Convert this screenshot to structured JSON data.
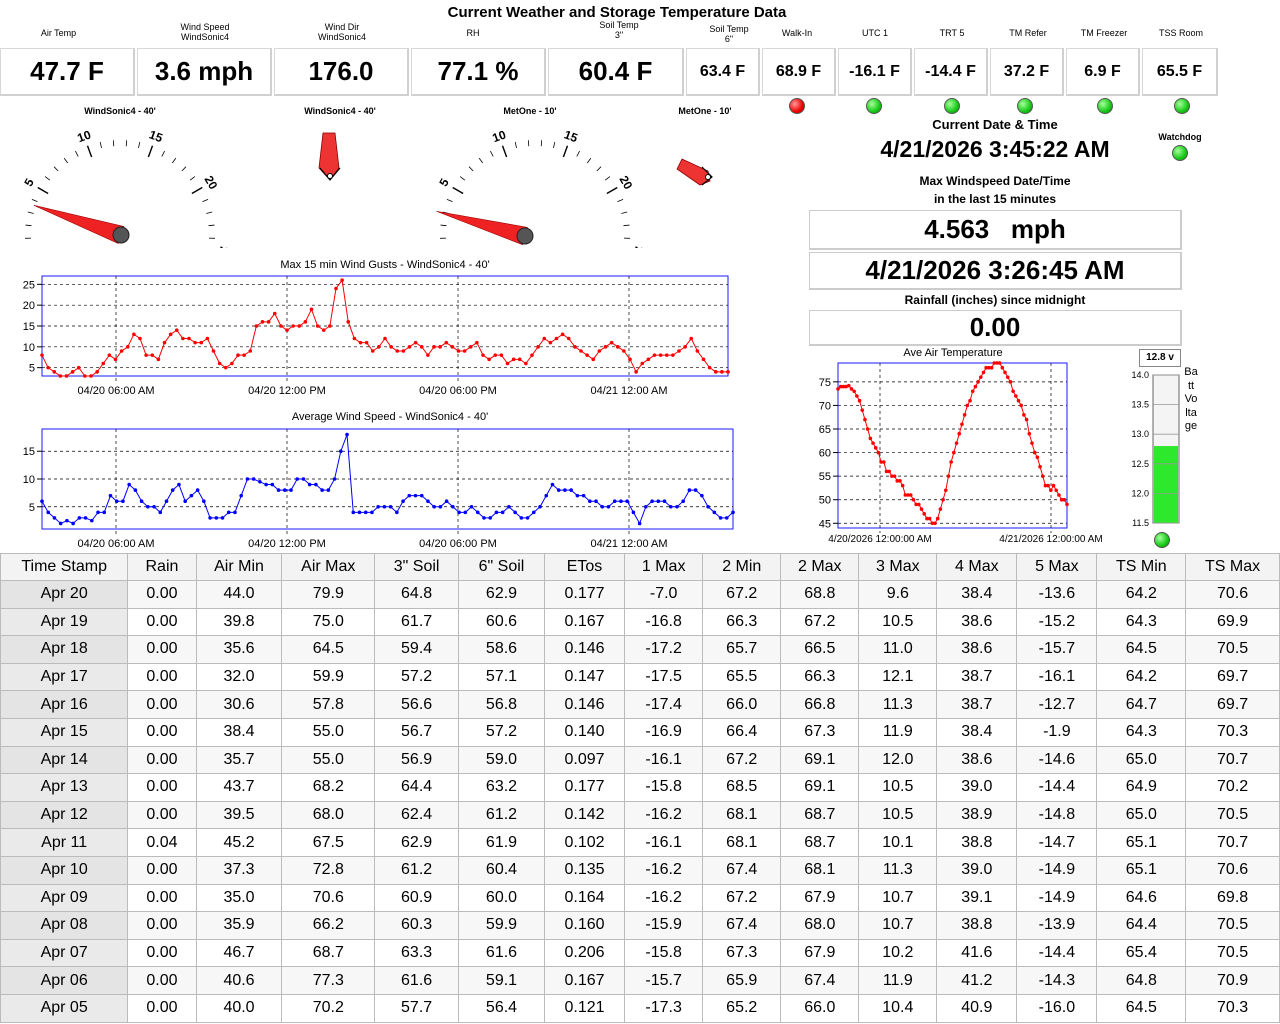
{
  "page_title": "Current Weather and Storage Temperature Data",
  "headers": {
    "air_temp": "Air Temp",
    "wind_speed": "Wind Speed\nWindSonic4",
    "wind_dir": "Wind Dir\nWindSonic4",
    "rh": "RH",
    "soil3": "Soil Temp\n3\"",
    "soil6": "Soil Temp\n6\"",
    "walkin": "Walk-In",
    "utc1": "UTC 1",
    "trt5": "TRT 5",
    "tm_refer": "TM Refer",
    "tm_freezer": "TM Freezer",
    "tss_room": "TSS Room"
  },
  "values": {
    "air_temp": "47.7  F",
    "wind_speed": "3.6  mph",
    "wind_dir": "176.0",
    "rh": "77.1  %",
    "soil3": "60.4  F",
    "soil6": "63.4  F",
    "walkin": "68.9  F",
    "utc1": "-16.1  F",
    "trt5": "-14.4  F",
    "tm_refer": "37.2  F",
    "tm_freezer": "6.9  F",
    "tss_room": "65.5  F"
  },
  "status_leds": {
    "walkin": "#e00000",
    "utc1": "#17c917",
    "trt5": "#17c917",
    "tm_refer": "#17c917",
    "tm_freezer": "#17c917",
    "tss_room": "#17c917",
    "watchdog": "#17c917",
    "batt": "#17c917"
  },
  "gauges": {
    "g1_label": "WindSonic4 - 40'",
    "g1_value_mph": 3.6,
    "vane1_label": "WindSonic4 - 40'",
    "g2_label": "MetOne - 10'",
    "g2_value_mph": 3.2,
    "vane2_label": "MetOne - 10'",
    "scale_ticks": [
      "0",
      "5",
      "10",
      "15",
      "20",
      "25"
    ]
  },
  "datetime": {
    "label": "Current Date & Time",
    "value": "4/21/2026 3:45:22 AM",
    "watchdog_label": "Watchdog"
  },
  "max_wind": {
    "label_line1": "Max Windspeed Date/Time",
    "label_line2": "in the last 15 minutes",
    "speed": "4.563   mph",
    "time": "4/21/2026 3:26:45 AM"
  },
  "rainfall": {
    "label": "Rainfall (inches) since midnight",
    "value": "0.00"
  },
  "battery": {
    "value_label": "12.8 v",
    "title": "Batt Voltage",
    "level_v": 12.8,
    "ticks": [
      "14.0",
      "13.5",
      "13.0",
      "12.5",
      "12.0",
      "11.5"
    ]
  },
  "chart_data": [
    {
      "type": "line",
      "title": "Max 15 min Wind Gusts - WindSonic4 - 40'",
      "x_tick_labels": [
        "04/20 06:00 AM",
        "04/20 12:00 PM",
        "04/20 06:00 PM",
        "04/21 12:00 AM"
      ],
      "ylim": [
        3,
        27
      ],
      "y_ticks": [
        "5",
        "10",
        "15",
        "20",
        "25"
      ],
      "series": [
        {
          "color": "#ff0000",
          "values": [
            8,
            5,
            4,
            3,
            3,
            4,
            5,
            3,
            3,
            4,
            6,
            8,
            7,
            9,
            10,
            13,
            12,
            8,
            8,
            7,
            11,
            13,
            14,
            12,
            12,
            11,
            11,
            12,
            9,
            6,
            5,
            6,
            8,
            8,
            9,
            15,
            16,
            16,
            18,
            15,
            14,
            15,
            15,
            16,
            19,
            15,
            14,
            15,
            24,
            26,
            16,
            12,
            11,
            11,
            9,
            10,
            12,
            10,
            9,
            9,
            10,
            11,
            10,
            8,
            10,
            10,
            11,
            10,
            9,
            9,
            10,
            11,
            8,
            7,
            8,
            8,
            6,
            7,
            7,
            6,
            8,
            10,
            12,
            11,
            12,
            13,
            12,
            10,
            9,
            8,
            7,
            9,
            10,
            11,
            10,
            9,
            7,
            4,
            6,
            7,
            8,
            8,
            8,
            8,
            9,
            10,
            12,
            9,
            7,
            5,
            4,
            4,
            4
          ]
        }
      ]
    },
    {
      "type": "line",
      "title": "Average Wind Speed - WindSonic4 - 40'",
      "x_tick_labels": [
        "04/20 06:00 AM",
        "04/20 12:00 PM",
        "04/20 06:00 PM",
        "04/21 12:00 AM"
      ],
      "ylim": [
        1,
        19
      ],
      "y_ticks": [
        "5",
        "10",
        "15"
      ],
      "series": [
        {
          "color": "#0000ff",
          "values": [
            6,
            4,
            3,
            2,
            2.5,
            2,
            3,
            3,
            2.5,
            4,
            4,
            7,
            6,
            6,
            9,
            8,
            6,
            5,
            5,
            4,
            6,
            8,
            9,
            6,
            7,
            8,
            6,
            3,
            3,
            3,
            4,
            4,
            7,
            10,
            10,
            9.5,
            9,
            9,
            8,
            8,
            8,
            10,
            10,
            9,
            9,
            8,
            8,
            10,
            15,
            18,
            4,
            4,
            4,
            4,
            5,
            5,
            5,
            4,
            6,
            7,
            7,
            7,
            6,
            5,
            5,
            6,
            5,
            4,
            4,
            5,
            4,
            3,
            3,
            4,
            4,
            5,
            4,
            3,
            3,
            4,
            5,
            7,
            9,
            8,
            8,
            8,
            7,
            7,
            6,
            6,
            5,
            5,
            6,
            6,
            6,
            4,
            2,
            5,
            6,
            6,
            6,
            5,
            5,
            6,
            8,
            8,
            7,
            5,
            4,
            3,
            3,
            4
          ]
        }
      ]
    },
    {
      "type": "line",
      "title": "Ave Air Temperature",
      "x_tick_labels": [
        "4/20/2026 12:00:00 AM",
        "4/21/2026 12:00:00 AM"
      ],
      "ylim": [
        44,
        79
      ],
      "y_ticks": [
        "45",
        "50",
        "55",
        "60",
        "65",
        "70",
        "75"
      ],
      "series": [
        {
          "color": "#ff0000",
          "values": [
            73.5,
            74,
            74,
            74,
            74.2,
            73.5,
            73,
            72,
            71,
            69,
            67,
            65,
            63,
            62,
            61,
            60,
            58,
            58,
            56,
            56,
            55,
            55,
            54,
            54,
            53,
            51,
            51,
            51,
            50,
            49,
            49,
            48,
            47,
            46,
            46,
            45,
            45,
            46,
            48,
            50,
            52,
            55,
            58,
            60,
            62,
            64,
            66,
            68,
            70,
            71,
            73,
            74,
            75,
            76,
            77,
            78,
            78,
            78,
            79,
            79,
            79,
            78,
            77,
            76,
            75,
            73,
            72,
            71,
            70,
            68,
            67,
            64,
            62,
            60,
            59,
            57,
            55,
            53,
            53,
            52,
            53,
            52,
            51,
            50,
            50,
            49
          ]
        }
      ]
    }
  ],
  "table": {
    "columns": [
      "Time Stamp",
      "Rain",
      "Air Min",
      "Air Max",
      "3\" Soil",
      "6\" Soil",
      "ETos",
      "1 Max",
      "2 Min",
      "2 Max",
      "3 Max",
      "4 Max",
      "5 Max",
      "TS Min",
      "TS Max"
    ],
    "rows": [
      [
        "Apr 20",
        "0.00",
        "44.0",
        "79.9",
        "64.8",
        "62.9",
        "0.177",
        "-7.0",
        "67.2",
        "68.8",
        "9.6",
        "38.4",
        "-13.6",
        "64.2",
        "70.6"
      ],
      [
        "Apr 19",
        "0.00",
        "39.8",
        "75.0",
        "61.7",
        "60.6",
        "0.167",
        "-16.8",
        "66.3",
        "67.2",
        "10.5",
        "38.6",
        "-15.2",
        "64.3",
        "69.9"
      ],
      [
        "Apr 18",
        "0.00",
        "35.6",
        "64.5",
        "59.4",
        "58.6",
        "0.146",
        "-17.2",
        "65.7",
        "66.5",
        "11.0",
        "38.6",
        "-15.7",
        "64.5",
        "70.5"
      ],
      [
        "Apr 17",
        "0.00",
        "32.0",
        "59.9",
        "57.2",
        "57.1",
        "0.147",
        "-17.5",
        "65.5",
        "66.3",
        "12.1",
        "38.7",
        "-16.1",
        "64.2",
        "69.7"
      ],
      [
        "Apr 16",
        "0.00",
        "30.6",
        "57.8",
        "56.6",
        "56.8",
        "0.146",
        "-17.4",
        "66.0",
        "66.8",
        "11.3",
        "38.7",
        "-12.7",
        "64.7",
        "69.7"
      ],
      [
        "Apr 15",
        "0.00",
        "38.4",
        "55.0",
        "56.7",
        "57.2",
        "0.140",
        "-16.9",
        "66.4",
        "67.3",
        "11.9",
        "38.4",
        "-1.9",
        "64.3",
        "70.3"
      ],
      [
        "Apr 14",
        "0.00",
        "35.7",
        "55.0",
        "56.9",
        "59.0",
        "0.097",
        "-16.1",
        "67.2",
        "69.1",
        "12.0",
        "38.6",
        "-14.6",
        "65.0",
        "70.7"
      ],
      [
        "Apr 13",
        "0.00",
        "43.7",
        "68.2",
        "64.4",
        "63.2",
        "0.177",
        "-15.8",
        "68.5",
        "69.1",
        "10.5",
        "39.0",
        "-14.4",
        "64.9",
        "70.2"
      ],
      [
        "Apr 12",
        "0.00",
        "39.5",
        "68.0",
        "62.4",
        "61.2",
        "0.142",
        "-16.2",
        "68.1",
        "68.7",
        "10.5",
        "38.9",
        "-14.8",
        "65.0",
        "70.5"
      ],
      [
        "Apr 11",
        "0.04",
        "45.2",
        "67.5",
        "62.9",
        "61.9",
        "0.102",
        "-16.1",
        "68.1",
        "68.7",
        "10.1",
        "38.8",
        "-14.7",
        "65.1",
        "70.7"
      ],
      [
        "Apr 10",
        "0.00",
        "37.3",
        "72.8",
        "61.2",
        "60.4",
        "0.135",
        "-16.2",
        "67.4",
        "68.1",
        "11.3",
        "39.0",
        "-14.9",
        "65.1",
        "70.6"
      ],
      [
        "Apr 09",
        "0.00",
        "35.0",
        "70.6",
        "60.9",
        "60.0",
        "0.164",
        "-16.2",
        "67.2",
        "67.9",
        "10.7",
        "39.1",
        "-14.9",
        "64.6",
        "69.8"
      ],
      [
        "Apr 08",
        "0.00",
        "35.9",
        "66.2",
        "60.3",
        "59.9",
        "0.160",
        "-15.9",
        "67.4",
        "68.0",
        "10.7",
        "38.8",
        "-13.9",
        "64.4",
        "70.5"
      ],
      [
        "Apr 07",
        "0.00",
        "46.7",
        "68.7",
        "63.3",
        "61.6",
        "0.206",
        "-15.8",
        "67.3",
        "67.9",
        "10.2",
        "41.6",
        "-14.4",
        "65.4",
        "70.5"
      ],
      [
        "Apr 06",
        "0.00",
        "40.6",
        "77.3",
        "61.6",
        "59.1",
        "0.167",
        "-15.7",
        "65.9",
        "67.4",
        "11.9",
        "41.2",
        "-14.3",
        "64.8",
        "70.9"
      ],
      [
        "Apr 05",
        "0.00",
        "40.0",
        "70.2",
        "57.7",
        "56.4",
        "0.121",
        "-17.3",
        "65.2",
        "66.0",
        "10.4",
        "40.9",
        "-16.0",
        "64.5",
        "70.3"
      ]
    ]
  }
}
